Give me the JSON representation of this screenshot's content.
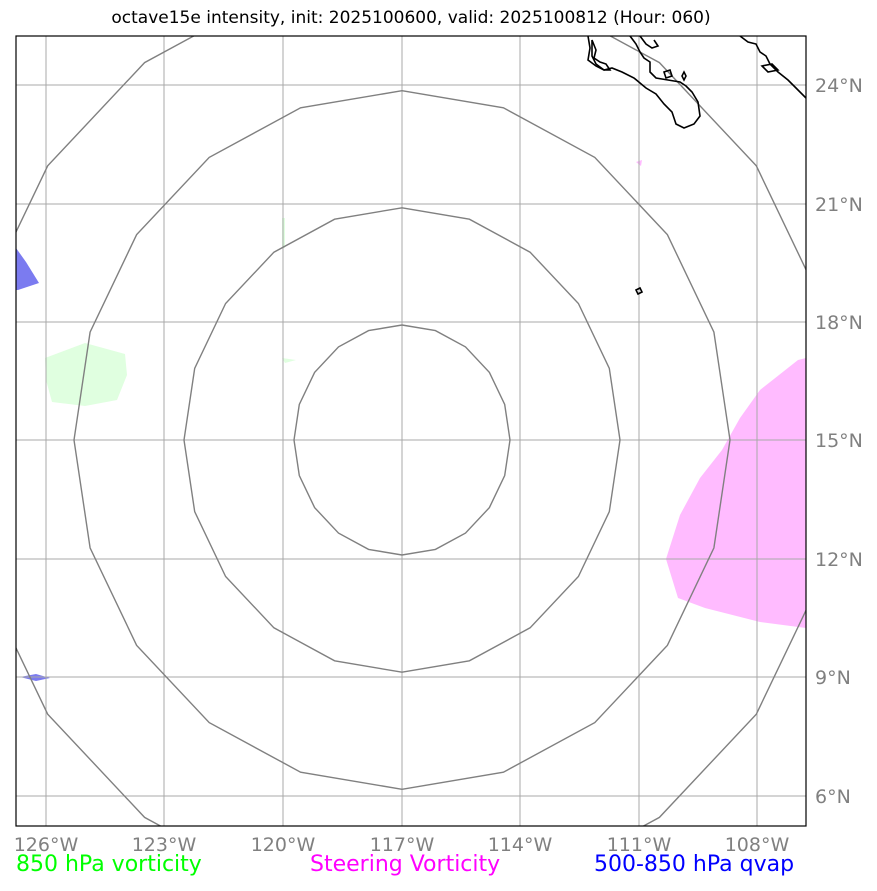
{
  "title": "octave15e intensity, init: 2025100600, valid: 2025100812 (Hour: 060)",
  "axes": {
    "lon_ticks": [
      "126°W",
      "123°W",
      "120°W",
      "117°W",
      "114°W",
      "111°W",
      "108°W"
    ],
    "lat_ticks": [
      "24°N",
      "21°N",
      "18°N",
      "15°N",
      "12°N",
      "9°N",
      "6°N"
    ],
    "lon_range": [
      -126.7,
      -106.7
    ],
    "lat_range": [
      5.2,
      25.2
    ],
    "grid": true,
    "tick_color": "#808080"
  },
  "storm_center": {
    "lon": -117.0,
    "lat": 15.0
  },
  "range_rings": {
    "count": 4,
    "color": "#808080"
  },
  "legend": {
    "vorticity_850": {
      "label": "850 hPa vorticity",
      "color": "#00ff00"
    },
    "steering_vorticity": {
      "label": "Steering Vorticity",
      "color": "#ff00ff"
    },
    "qvap_500_850": {
      "label": "500-850 hPa qvap",
      "color": "#0000ff"
    }
  },
  "fields": {
    "vorticity_850_fill": "#e0ffe0",
    "steering_vorticity_fill": "#ffbbff",
    "qvap_fill": "#7b7bf0"
  },
  "coastline_color": "#000000"
}
